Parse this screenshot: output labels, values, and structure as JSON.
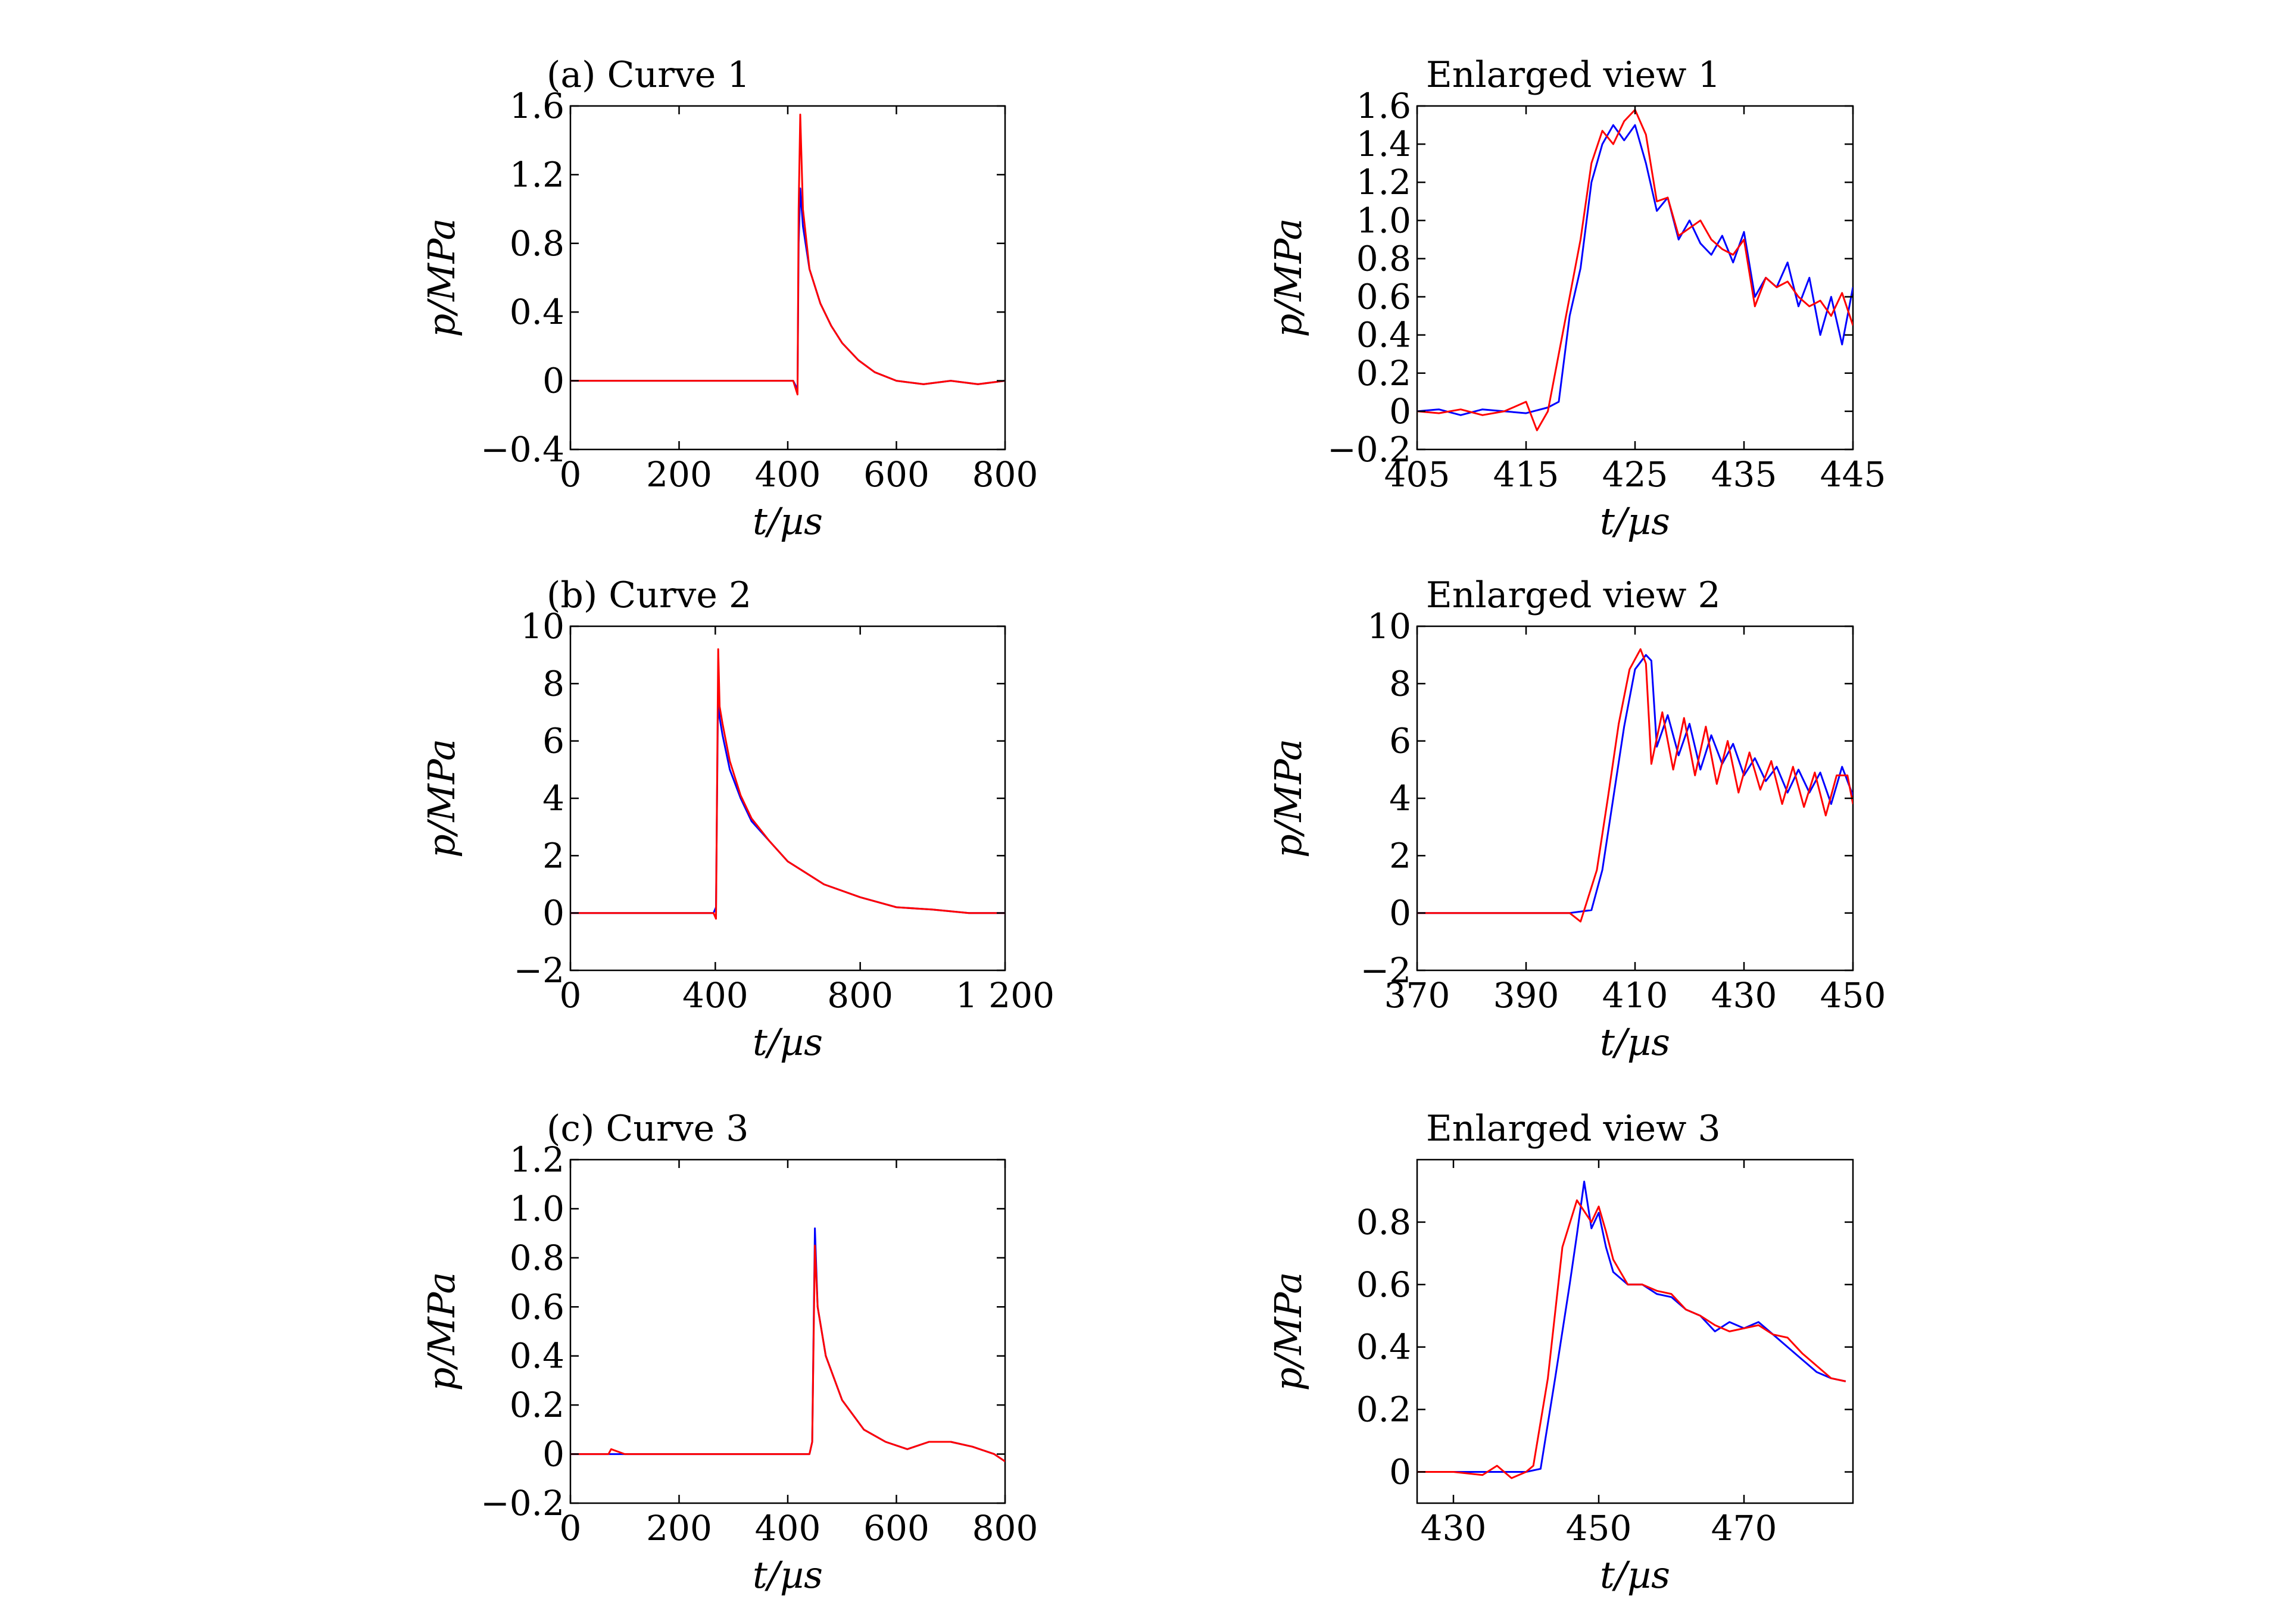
{
  "colors": {
    "red": "#ff0000",
    "blue": "#0000ff"
  },
  "chart_data": [
    {
      "type": "line",
      "title": "(a) Curve 1",
      "xlabel": "t/µs",
      "ylabel": "p/MPa",
      "xlim": [
        0,
        800
      ],
      "ylim": [
        -0.4,
        1.6
      ],
      "xticks": [
        0,
        200,
        400,
        600,
        800
      ],
      "xtick_labels": [
        "0",
        "200",
        "400",
        "600",
        "800"
      ],
      "yticks": [
        -0.4,
        0,
        0.4,
        0.8,
        1.2,
        1.6
      ],
      "ytick_labels": [
        "−0.4",
        "0",
        "0.4",
        "0.8",
        "1.2",
        "1.6"
      ],
      "series": [
        {
          "color": "blue",
          "x": [
            0,
            100,
            200,
            300,
            410,
            418,
            420,
            423,
            428,
            440,
            460,
            480,
            500,
            530,
            560,
            600,
            650,
            700,
            750,
            800
          ],
          "y": [
            0,
            0,
            0,
            0,
            0,
            -0.05,
            0.8,
            1.12,
            0.9,
            0.65,
            0.45,
            0.32,
            0.22,
            0.12,
            0.05,
            0,
            -0.02,
            0,
            -0.02,
            0
          ]
        },
        {
          "color": "red",
          "x": [
            0,
            100,
            200,
            300,
            410,
            418,
            420,
            423,
            428,
            440,
            460,
            480,
            500,
            530,
            560,
            600,
            650,
            700,
            750,
            800
          ],
          "y": [
            0,
            0,
            0,
            0,
            0,
            -0.08,
            1.0,
            1.55,
            1.0,
            0.65,
            0.45,
            0.32,
            0.22,
            0.12,
            0.05,
            0,
            -0.02,
            0,
            -0.02,
            0
          ]
        }
      ]
    },
    {
      "type": "line",
      "title": "Enlarged view 1",
      "xlabel": "t/µs",
      "ylabel": "p/MPa",
      "xlim": [
        405,
        445
      ],
      "ylim": [
        -0.2,
        1.6
      ],
      "xticks": [
        405,
        415,
        425,
        435,
        445
      ],
      "xtick_labels": [
        "405",
        "415",
        "425",
        "435",
        "445"
      ],
      "yticks": [
        -0.2,
        0,
        0.2,
        0.4,
        0.6,
        0.8,
        1.0,
        1.2,
        1.4,
        1.6
      ],
      "ytick_labels": [
        "−0.2",
        "0",
        "0.2",
        "0.4",
        "0.6",
        "0.8",
        "1.0",
        "1.2",
        "1.4",
        "1.6"
      ],
      "series": [
        {
          "color": "blue",
          "x": [
            405,
            407,
            409,
            411,
            413,
            415,
            417,
            418,
            419,
            420,
            421,
            422,
            423,
            424,
            425,
            426,
            427,
            428,
            429,
            430,
            431,
            432,
            433,
            434,
            435,
            436,
            437,
            438,
            439,
            440,
            441,
            442,
            443,
            444,
            445
          ],
          "y": [
            0,
            0.01,
            -0.02,
            0.01,
            0,
            -0.01,
            0.02,
            0.05,
            0.5,
            0.75,
            1.2,
            1.4,
            1.5,
            1.42,
            1.5,
            1.3,
            1.05,
            1.12,
            0.9,
            1.0,
            0.88,
            0.82,
            0.92,
            0.78,
            0.94,
            0.6,
            0.7,
            0.65,
            0.78,
            0.55,
            0.7,
            0.4,
            0.6,
            0.35,
            0.65
          ]
        },
        {
          "color": "red",
          "x": [
            405,
            407,
            409,
            411,
            413,
            415,
            416,
            417,
            418,
            419,
            420,
            421,
            422,
            423,
            424,
            425,
            426,
            427,
            428,
            429,
            430,
            431,
            432,
            433,
            434,
            435,
            436,
            437,
            438,
            439,
            440,
            441,
            442,
            443,
            444,
            445
          ],
          "y": [
            0,
            -0.01,
            0.01,
            -0.02,
            0,
            0.05,
            -0.1,
            0,
            0.3,
            0.6,
            0.9,
            1.3,
            1.47,
            1.4,
            1.52,
            1.58,
            1.45,
            1.1,
            1.12,
            0.92,
            0.96,
            1.0,
            0.9,
            0.85,
            0.82,
            0.9,
            0.55,
            0.7,
            0.65,
            0.68,
            0.6,
            0.55,
            0.58,
            0.5,
            0.62,
            0.45
          ]
        }
      ]
    },
    {
      "type": "line",
      "title": "(b) Curve 2",
      "xlabel": "t/µs",
      "ylabel": "p/MPa",
      "xlim": [
        0,
        1200
      ],
      "ylim": [
        -2,
        10
      ],
      "xticks": [
        0,
        400,
        800,
        1200
      ],
      "xtick_labels": [
        "0",
        "400",
        "800",
        "1 200"
      ],
      "yticks": [
        -2,
        0,
        2,
        4,
        6,
        8,
        10
      ],
      "ytick_labels": [
        "−2",
        "0",
        "2",
        "4",
        "6",
        "8",
        "10"
      ],
      "series": [
        {
          "color": "blue",
          "x": [
            0,
            200,
            395,
            402,
            408,
            412,
            420,
            440,
            470,
            500,
            550,
            600,
            650,
            700,
            800,
            900,
            1000,
            1100,
            1200
          ],
          "y": [
            0,
            0,
            0,
            0.2,
            8.2,
            6.8,
            6.2,
            5.0,
            4.0,
            3.2,
            2.5,
            1.8,
            1.4,
            1.0,
            0.55,
            0.2,
            0.12,
            0,
            0
          ]
        },
        {
          "color": "red",
          "x": [
            0,
            200,
            395,
            402,
            408,
            412,
            420,
            440,
            470,
            500,
            550,
            600,
            650,
            700,
            800,
            900,
            1000,
            1100,
            1200
          ],
          "y": [
            0,
            0,
            0,
            -0.2,
            9.2,
            7.2,
            6.6,
            5.3,
            4.1,
            3.3,
            2.5,
            1.8,
            1.4,
            1.0,
            0.55,
            0.2,
            0.12,
            0,
            0
          ]
        }
      ]
    },
    {
      "type": "line",
      "title": "Enlarged view 2",
      "xlabel": "t/µs",
      "ylabel": "p/MPa",
      "xlim": [
        370,
        450
      ],
      "ylim": [
        -2,
        10
      ],
      "xticks": [
        370,
        390,
        410,
        430,
        450
      ],
      "xtick_labels": [
        "370",
        "390",
        "410",
        "430",
        "450"
      ],
      "yticks": [
        -2,
        0,
        2,
        4,
        6,
        8,
        10
      ],
      "ytick_labels": [
        "−2",
        "0",
        "2",
        "4",
        "6",
        "8",
        "10"
      ],
      "series": [
        {
          "color": "blue",
          "x": [
            370,
            380,
            390,
            398,
            402,
            404,
            406,
            408,
            410,
            412,
            413,
            414,
            416,
            418,
            420,
            422,
            424,
            426,
            428,
            430,
            432,
            434,
            436,
            438,
            440,
            442,
            444,
            446,
            448,
            450
          ],
          "y": [
            0,
            0,
            0,
            0,
            0.1,
            1.5,
            4.0,
            6.5,
            8.5,
            9.0,
            8.8,
            5.8,
            6.9,
            5.5,
            6.6,
            5.0,
            6.2,
            5.2,
            5.9,
            4.8,
            5.4,
            4.6,
            5.1,
            4.2,
            5.0,
            4.2,
            4.9,
            3.8,
            5.1,
            4.1
          ]
        },
        {
          "color": "red",
          "x": [
            370,
            380,
            390,
            398,
            400,
            401,
            403,
            405,
            407,
            409,
            411,
            412,
            413,
            415,
            417,
            419,
            421,
            423,
            425,
            427,
            429,
            431,
            433,
            435,
            437,
            439,
            441,
            443,
            445,
            447,
            449,
            450
          ],
          "y": [
            0,
            0,
            0,
            0,
            -0.3,
            0.3,
            1.5,
            4.0,
            6.6,
            8.5,
            9.2,
            8.7,
            5.2,
            7.0,
            5.0,
            6.8,
            4.8,
            6.5,
            4.5,
            6.0,
            4.2,
            5.6,
            4.3,
            5.3,
            3.8,
            5.1,
            3.7,
            4.9,
            3.4,
            4.8,
            4.8,
            3.8
          ]
        }
      ]
    },
    {
      "type": "line",
      "title": "(c) Curve 3",
      "xlabel": "t/µs",
      "ylabel": "p/MPa",
      "xlim": [
        0,
        800
      ],
      "ylim": [
        -0.2,
        1.2
      ],
      "xticks": [
        0,
        200,
        400,
        600,
        800
      ],
      "xtick_labels": [
        "0",
        "200",
        "400",
        "600",
        "800"
      ],
      "yticks": [
        -0.2,
        0,
        0.2,
        0.4,
        0.6,
        0.8,
        1.0,
        1.2
      ],
      "ytick_labels": [
        "−0.2",
        "0",
        "0.2",
        "0.4",
        "0.6",
        "0.8",
        "1.0",
        "1.2"
      ],
      "series": [
        {
          "color": "blue",
          "x": [
            0,
            100,
            200,
            300,
            440,
            445,
            450,
            455,
            470,
            500,
            540,
            580,
            620,
            660,
            700,
            740,
            780,
            800
          ],
          "y": [
            0,
            0,
            0,
            0,
            0,
            0.05,
            0.92,
            0.6,
            0.4,
            0.22,
            0.1,
            0.05,
            0.02,
            0.05,
            0.05,
            0.03,
            0,
            -0.03
          ]
        },
        {
          "color": "red",
          "x": [
            0,
            70,
            75,
            100,
            200,
            300,
            440,
            445,
            450,
            455,
            470,
            500,
            540,
            580,
            620,
            660,
            700,
            740,
            780,
            800
          ],
          "y": [
            0,
            0,
            0.02,
            0,
            0,
            0,
            0,
            0.05,
            0.85,
            0.6,
            0.4,
            0.22,
            0.1,
            0.05,
            0.02,
            0.05,
            0.05,
            0.03,
            0,
            -0.03
          ]
        }
      ]
    },
    {
      "type": "line",
      "title": "Enlarged view 3",
      "xlabel": "t/µs",
      "ylabel": "p/MPa",
      "xlim": [
        425,
        485
      ],
      "ylim": [
        -0.1,
        1.0
      ],
      "xticks": [
        430,
        450,
        470
      ],
      "xtick_labels": [
        "430",
        "450",
        "470"
      ],
      "yticks": [
        0,
        0.2,
        0.4,
        0.6,
        0.8
      ],
      "ytick_labels": [
        "0",
        "0.2",
        "0.4",
        "0.6",
        "0.8"
      ],
      "series": [
        {
          "color": "blue",
          "x": [
            425,
            430,
            435,
            440,
            442,
            444,
            446,
            447,
            448,
            449,
            450,
            451,
            452,
            454,
            456,
            458,
            460,
            462,
            464,
            466,
            468,
            470,
            472,
            474,
            476,
            478,
            480,
            482,
            484
          ],
          "y": [
            0,
            0,
            0,
            0,
            0.01,
            0.3,
            0.6,
            0.76,
            0.93,
            0.78,
            0.83,
            0.72,
            0.64,
            0.6,
            0.6,
            0.57,
            0.56,
            0.52,
            0.5,
            0.45,
            0.48,
            0.46,
            0.48,
            0.44,
            0.4,
            0.36,
            0.32,
            0.3,
            0.29
          ]
        },
        {
          "color": "red",
          "x": [
            425,
            430,
            434,
            436,
            438,
            440,
            441,
            443,
            445,
            447,
            449,
            450,
            451,
            452,
            454,
            456,
            458,
            460,
            462,
            464,
            466,
            468,
            470,
            472,
            474,
            476,
            478,
            480,
            482,
            484
          ],
          "y": [
            0,
            0,
            -0.01,
            0.02,
            -0.02,
            0,
            0.02,
            0.3,
            0.72,
            0.87,
            0.8,
            0.85,
            0.77,
            0.68,
            0.6,
            0.6,
            0.58,
            0.57,
            0.52,
            0.5,
            0.47,
            0.45,
            0.46,
            0.47,
            0.44,
            0.43,
            0.38,
            0.34,
            0.3,
            0.29
          ]
        }
      ]
    }
  ]
}
